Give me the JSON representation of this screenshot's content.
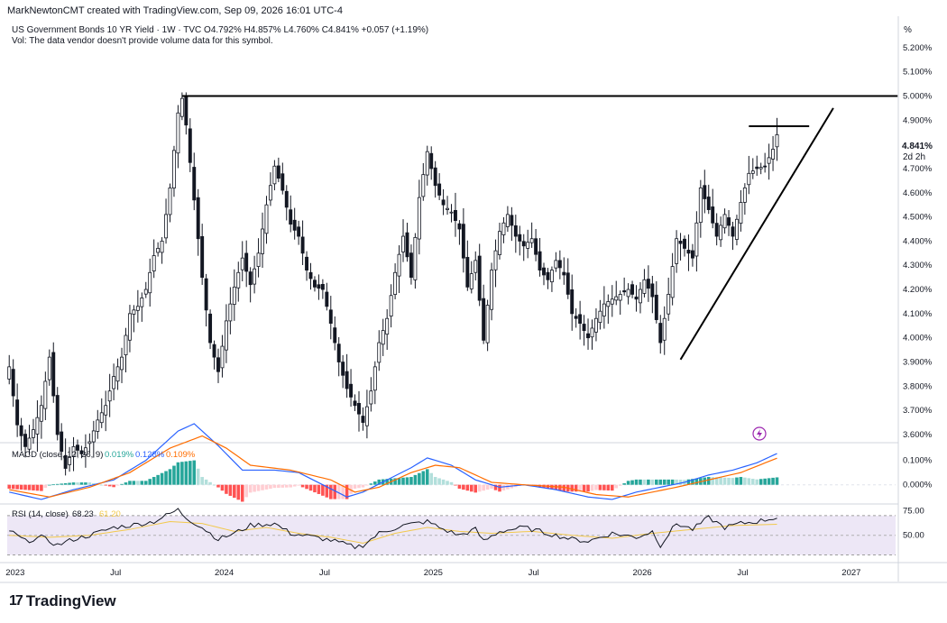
{
  "header": {
    "author_line": "MarkNewtonCMT created with TradingView.com, Sep 09, 2026 16:01 UTC-4",
    "symbol_line": "US Government Bonds 10 YR Yield · 1W · TVC  O4.792%  H4.857%  L4.760%  C4.841%  +0.057 (+1.19%)",
    "vol_line": "Vol: The data vendor doesn't provide volume data for this symbol."
  },
  "scale": {
    "unit_button": "%",
    "last_price": "4.841%",
    "countdown": "2d 2h"
  },
  "colors": {
    "candle": "#131722",
    "macd_line": "#2962ff",
    "signal_line": "#ff6d00",
    "hist_pos_strong": "#26a69a",
    "hist_pos_weak": "#b2dfdb",
    "hist_neg_strong": "#ff5252",
    "hist_neg_weak": "#ffcdd2",
    "rsi_line": "#131722",
    "rsi_ma": "#f2c94c",
    "rsi_band": "#ede7f6"
  },
  "logo": {
    "text": "TradingView"
  },
  "chart_data": [
    {
      "type": "candlestick",
      "title": "US Government Bonds 10 YR Yield · 1W · TVC",
      "y_ticks": [
        "5.200%",
        "5.100%",
        "5.000%",
        "4.900%",
        "4.700%",
        "4.600%",
        "4.500%",
        "4.400%",
        "4.300%",
        "4.200%",
        "4.100%",
        "4.000%",
        "3.900%",
        "3.800%",
        "3.700%",
        "3.600%"
      ],
      "y_tick_values": [
        5.2,
        5.1,
        5.0,
        4.9,
        4.7,
        4.6,
        4.5,
        4.4,
        4.3,
        4.2,
        4.1,
        4.0,
        3.9,
        3.8,
        3.7,
        3.6
      ],
      "ylim": [
        3.57,
        5.33
      ],
      "x_ticks": [
        "2023",
        "Jul",
        "2024",
        "Jul",
        "2025",
        "Jul",
        "2026",
        "Jul",
        "2027"
      ],
      "x_tick_positions": [
        0,
        26,
        52,
        78,
        104,
        130,
        156,
        182,
        208
      ],
      "bars_total_span": 221,
      "anchors": [
        [
          0,
          3.88
        ],
        [
          2,
          3.64
        ],
        [
          4,
          3.55
        ],
        [
          6,
          3.62
        ],
        [
          8,
          3.72
        ],
        [
          10,
          3.92
        ],
        [
          12,
          3.6
        ],
        [
          14,
          3.46
        ],
        [
          16,
          3.55
        ],
        [
          18,
          3.52
        ],
        [
          20,
          3.57
        ],
        [
          22,
          3.66
        ],
        [
          24,
          3.72
        ],
        [
          26,
          3.84
        ],
        [
          28,
          3.92
        ],
        [
          30,
          4.1
        ],
        [
          32,
          4.13
        ],
        [
          34,
          4.2
        ],
        [
          36,
          4.34
        ],
        [
          38,
          4.4
        ],
        [
          40,
          4.62
        ],
        [
          42,
          4.93
        ],
        [
          43,
          4.99
        ],
        [
          44,
          4.88
        ],
        [
          46,
          4.57
        ],
        [
          48,
          4.25
        ],
        [
          50,
          3.98
        ],
        [
          52,
          3.86
        ],
        [
          54,
          4.07
        ],
        [
          56,
          4.21
        ],
        [
          58,
          4.33
        ],
        [
          60,
          4.22
        ],
        [
          62,
          4.35
        ],
        [
          64,
          4.55
        ],
        [
          66,
          4.71
        ],
        [
          68,
          4.61
        ],
        [
          70,
          4.47
        ],
        [
          72,
          4.42
        ],
        [
          74,
          4.28
        ],
        [
          76,
          4.21
        ],
        [
          78,
          4.2
        ],
        [
          80,
          4.06
        ],
        [
          82,
          3.9
        ],
        [
          84,
          3.79
        ],
        [
          86,
          3.72
        ],
        [
          88,
          3.65
        ],
        [
          90,
          3.78
        ],
        [
          92,
          3.98
        ],
        [
          94,
          4.08
        ],
        [
          96,
          4.27
        ],
        [
          98,
          4.42
        ],
        [
          100,
          4.25
        ],
        [
          102,
          4.58
        ],
        [
          104,
          4.77
        ],
        [
          106,
          4.63
        ],
        [
          108,
          4.55
        ],
        [
          110,
          4.52
        ],
        [
          112,
          4.45
        ],
        [
          114,
          4.21
        ],
        [
          116,
          4.32
        ],
        [
          118,
          3.99
        ],
        [
          120,
          4.28
        ],
        [
          122,
          4.44
        ],
        [
          124,
          4.51
        ],
        [
          126,
          4.42
        ],
        [
          128,
          4.38
        ],
        [
          130,
          4.41
        ],
        [
          132,
          4.28
        ],
        [
          134,
          4.24
        ],
        [
          136,
          4.32
        ],
        [
          138,
          4.26
        ],
        [
          140,
          4.1
        ],
        [
          142,
          4.06
        ],
        [
          144,
          4.0
        ],
        [
          146,
          4.08
        ],
        [
          148,
          4.14
        ],
        [
          150,
          4.16
        ],
        [
          152,
          4.18
        ],
        [
          154,
          4.2
        ],
        [
          156,
          4.16
        ],
        [
          158,
          4.24
        ],
        [
          160,
          4.17
        ],
        [
          162,
          3.98
        ],
        [
          164,
          4.18
        ],
        [
          166,
          4.41
        ],
        [
          168,
          4.37
        ],
        [
          170,
          4.33
        ],
        [
          172,
          4.62
        ],
        [
          174,
          4.53
        ],
        [
          176,
          4.42
        ],
        [
          178,
          4.51
        ],
        [
          180,
          4.42
        ],
        [
          182,
          4.56
        ],
        [
          184,
          4.68
        ],
        [
          186,
          4.7
        ],
        [
          188,
          4.71
        ],
        [
          190,
          4.78
        ],
        [
          191,
          4.84
        ]
      ],
      "horizontal_levels": [
        {
          "value": 5.0,
          "from_bar": 43,
          "to_bar": 221
        },
        {
          "value": 4.875,
          "from_bar": 184,
          "to_bar": 199
        }
      ],
      "trend_lines": [
        {
          "from": [
            167,
            3.91
          ],
          "to": [
            205,
            4.95
          ]
        }
      ],
      "last_close": 4.841
    },
    {
      "type": "line",
      "title": "MACD (close, 12, 26, 9)",
      "legend": [
        {
          "label": "0.019%",
          "color": "#26a69a"
        },
        {
          "label": "0.128%",
          "color": "#2962ff"
        },
        {
          "label": "0.109%",
          "color": "#ff6d00"
        }
      ],
      "y_ticks": [
        "0.100%",
        "0.000%"
      ],
      "y_tick_values": [
        0.1,
        0.0
      ],
      "ylim": [
        -0.075,
        0.165
      ],
      "macd_anchors": [
        [
          0,
          -0.03
        ],
        [
          8,
          -0.06
        ],
        [
          16,
          -0.02
        ],
        [
          26,
          0.02
        ],
        [
          34,
          0.1
        ],
        [
          42,
          0.22
        ],
        [
          46,
          0.25
        ],
        [
          52,
          0.16
        ],
        [
          58,
          0.06
        ],
        [
          66,
          0.06
        ],
        [
          72,
          0.05
        ],
        [
          78,
          0.0
        ],
        [
          84,
          -0.05
        ],
        [
          88,
          -0.03
        ],
        [
          94,
          0.02
        ],
        [
          100,
          0.07
        ],
        [
          104,
          0.11
        ],
        [
          110,
          0.08
        ],
        [
          116,
          0.02
        ],
        [
          122,
          -0.01
        ],
        [
          128,
          0.0
        ],
        [
          136,
          -0.02
        ],
        [
          144,
          -0.05
        ],
        [
          150,
          -0.06
        ],
        [
          156,
          -0.03
        ],
        [
          162,
          -0.01
        ],
        [
          168,
          0.01
        ],
        [
          174,
          0.04
        ],
        [
          180,
          0.06
        ],
        [
          186,
          0.09
        ],
        [
          191,
          0.128
        ]
      ],
      "signal_anchors": [
        [
          0,
          -0.02
        ],
        [
          10,
          -0.05
        ],
        [
          20,
          -0.01
        ],
        [
          30,
          0.05
        ],
        [
          40,
          0.15
        ],
        [
          48,
          0.2
        ],
        [
          54,
          0.15
        ],
        [
          60,
          0.08
        ],
        [
          70,
          0.06
        ],
        [
          80,
          0.02
        ],
        [
          86,
          -0.03
        ],
        [
          92,
          -0.01
        ],
        [
          100,
          0.05
        ],
        [
          106,
          0.08
        ],
        [
          112,
          0.07
        ],
        [
          120,
          0.01
        ],
        [
          128,
          0.0
        ],
        [
          138,
          -0.01
        ],
        [
          146,
          -0.04
        ],
        [
          154,
          -0.05
        ],
        [
          160,
          -0.03
        ],
        [
          166,
          -0.01
        ],
        [
          174,
          0.02
        ],
        [
          182,
          0.05
        ],
        [
          191,
          0.109
        ]
      ]
    },
    {
      "type": "line",
      "title": "RSI (14, close)",
      "legend": [
        {
          "label": "68.23",
          "color": "#131722"
        },
        {
          "label": "61.20",
          "color": "#f2c94c"
        }
      ],
      "y_ticks": [
        "75.00",
        "50.00"
      ],
      "y_tick_values": [
        75,
        50
      ],
      "ylim": [
        25,
        80
      ],
      "bands": [
        30,
        70
      ],
      "rsi_anchors": [
        [
          0,
          55
        ],
        [
          4,
          44
        ],
        [
          8,
          48
        ],
        [
          12,
          40
        ],
        [
          16,
          46
        ],
        [
          20,
          50
        ],
        [
          26,
          58
        ],
        [
          30,
          60
        ],
        [
          36,
          64
        ],
        [
          42,
          76
        ],
        [
          44,
          68
        ],
        [
          48,
          58
        ],
        [
          52,
          46
        ],
        [
          56,
          52
        ],
        [
          60,
          60
        ],
        [
          66,
          62
        ],
        [
          70,
          52
        ],
        [
          76,
          48
        ],
        [
          80,
          45
        ],
        [
          86,
          38
        ],
        [
          88,
          40
        ],
        [
          92,
          52
        ],
        [
          98,
          60
        ],
        [
          104,
          64
        ],
        [
          108,
          56
        ],
        [
          112,
          50
        ],
        [
          116,
          56
        ],
        [
          118,
          44
        ],
        [
          122,
          54
        ],
        [
          128,
          58
        ],
        [
          134,
          52
        ],
        [
          140,
          46
        ],
        [
          144,
          44
        ],
        [
          150,
          52
        ],
        [
          156,
          48
        ],
        [
          160,
          54
        ],
        [
          162,
          40
        ],
        [
          166,
          62
        ],
        [
          170,
          56
        ],
        [
          174,
          68
        ],
        [
          178,
          58
        ],
        [
          182,
          62
        ],
        [
          186,
          64
        ],
        [
          191,
          68.23
        ]
      ],
      "rsi_ma_anchors": [
        [
          0,
          50
        ],
        [
          10,
          48
        ],
        [
          20,
          50
        ],
        [
          30,
          56
        ],
        [
          40,
          64
        ],
        [
          48,
          62
        ],
        [
          56,
          54
        ],
        [
          64,
          58
        ],
        [
          72,
          52
        ],
        [
          80,
          48
        ],
        [
          88,
          42
        ],
        [
          96,
          52
        ],
        [
          104,
          58
        ],
        [
          112,
          54
        ],
        [
          120,
          52
        ],
        [
          130,
          54
        ],
        [
          140,
          50
        ],
        [
          150,
          47
        ],
        [
          160,
          52
        ],
        [
          170,
          56
        ],
        [
          180,
          60
        ],
        [
          191,
          61.2
        ]
      ]
    }
  ]
}
